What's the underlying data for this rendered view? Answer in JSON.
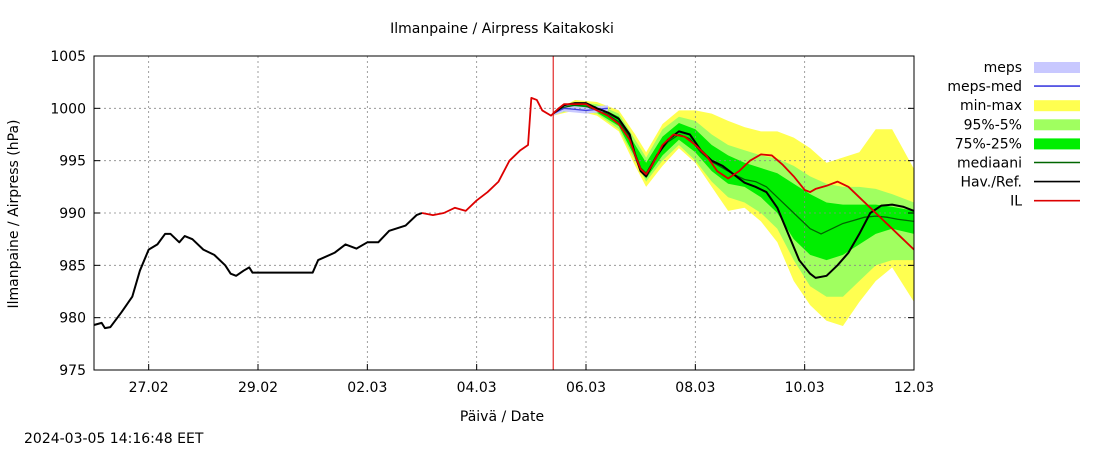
{
  "chart_data": {
    "type": "area",
    "title": "Ilmanpaine / Airpress Kaitakoski",
    "xlabel": "Päivä / Date",
    "ylabel": "Ilmanpaine / Airpress (hPa)",
    "ylim": [
      975,
      1005
    ],
    "yticks": [
      975,
      980,
      985,
      990,
      995,
      1000,
      1005
    ],
    "x_unit": "days",
    "xlim": [
      0,
      7.5
    ],
    "xticks": [
      {
        "label": "27.02",
        "x": 0.5
      },
      {
        "label": "29.02",
        "x": 1.5
      },
      {
        "label": "02.03",
        "x": 2.5
      },
      {
        "label": "04.03",
        "x": 3.5
      },
      {
        "label": "06.03",
        "x": 4.5
      },
      {
        "label": "08.03",
        "x": 5.5
      },
      {
        "label": "10.03",
        "x": 6.5
      },
      {
        "label": "12.03",
        "x": 7.5
      }
    ],
    "grid": true,
    "legend_position": "right",
    "now_marker_x": 4.2,
    "timestamp": "2024-03-05 14:16:48 EET",
    "legend": [
      {
        "name": "meps",
        "color": "#c8c8ff",
        "kind": "box"
      },
      {
        "name": "meps-med",
        "color": "#4040e0",
        "kind": "line"
      },
      {
        "name": "min-max",
        "color": "#ffff50",
        "kind": "box"
      },
      {
        "name": "95%-5%",
        "color": "#a0ff60",
        "kind": "box"
      },
      {
        "name": "75%-25%",
        "color": "#00ee00",
        "kind": "box"
      },
      {
        "name": "mediaani",
        "color": "#006600",
        "kind": "line"
      },
      {
        "name": "Hav./Ref.",
        "color": "#000000",
        "kind": "line"
      },
      {
        "name": "IL",
        "color": "#dd0000",
        "kind": "line"
      }
    ],
    "series": {
      "observed_black": [
        [
          0.0,
          979.3
        ],
        [
          0.07,
          979.5
        ],
        [
          0.1,
          979.0
        ],
        [
          0.15,
          979.1
        ],
        [
          0.25,
          980.5
        ],
        [
          0.35,
          982.0
        ],
        [
          0.42,
          984.5
        ],
        [
          0.5,
          986.5
        ],
        [
          0.58,
          987.0
        ],
        [
          0.65,
          988.0
        ],
        [
          0.7,
          988.0
        ],
        [
          0.78,
          987.2
        ],
        [
          0.83,
          987.8
        ],
        [
          0.9,
          987.5
        ],
        [
          1.0,
          986.5
        ],
        [
          1.1,
          986.0
        ],
        [
          1.2,
          985.0
        ],
        [
          1.25,
          984.2
        ],
        [
          1.3,
          984.0
        ],
        [
          1.37,
          984.5
        ],
        [
          1.42,
          984.8
        ],
        [
          1.45,
          984.3
        ],
        [
          2.0,
          984.3
        ],
        [
          2.05,
          985.5
        ],
        [
          2.2,
          986.2
        ],
        [
          2.3,
          987.0
        ],
        [
          2.4,
          986.6
        ],
        [
          2.5,
          987.2
        ],
        [
          2.6,
          987.2
        ],
        [
          2.7,
          988.3
        ],
        [
          2.85,
          988.8
        ],
        [
          2.95,
          989.8
        ],
        [
          3.0,
          990.0
        ]
      ],
      "il": [
        [
          3.0,
          990.0
        ],
        [
          3.1,
          989.8
        ],
        [
          3.2,
          990.0
        ],
        [
          3.3,
          990.5
        ],
        [
          3.4,
          990.2
        ],
        [
          3.5,
          991.2
        ],
        [
          3.6,
          992.0
        ],
        [
          3.7,
          993.0
        ],
        [
          3.8,
          995.0
        ],
        [
          3.9,
          996.0
        ],
        [
          3.97,
          996.5
        ],
        [
          4.0,
          1001.0
        ],
        [
          4.05,
          1000.8
        ],
        [
          4.1,
          999.8
        ],
        [
          4.18,
          999.3
        ],
        [
          4.25,
          1000.0
        ],
        [
          4.3,
          1000.4
        ],
        [
          4.4,
          1000.4
        ],
        [
          4.5,
          1000.4
        ],
        [
          4.6,
          999.8
        ],
        [
          4.7,
          999.3
        ],
        [
          4.8,
          998.5
        ],
        [
          4.9,
          997.0
        ],
        [
          4.95,
          995.5
        ],
        [
          5.0,
          994.2
        ],
        [
          5.05,
          993.7
        ],
        [
          5.1,
          994.5
        ],
        [
          5.2,
          996.5
        ],
        [
          5.3,
          997.5
        ],
        [
          5.4,
          997.3
        ],
        [
          5.5,
          996.5
        ],
        [
          5.6,
          995.5
        ],
        [
          5.7,
          994.0
        ],
        [
          5.8,
          993.3
        ],
        [
          5.9,
          994.0
        ],
        [
          6.0,
          995.0
        ],
        [
          6.1,
          995.6
        ],
        [
          6.2,
          995.5
        ],
        [
          6.3,
          994.6
        ],
        [
          6.4,
          993.5
        ],
        [
          6.5,
          992.2
        ],
        [
          6.55,
          992.0
        ],
        [
          6.6,
          992.3
        ],
        [
          6.7,
          992.6
        ],
        [
          6.8,
          993.0
        ],
        [
          6.9,
          992.5
        ],
        [
          7.0,
          991.5
        ],
        [
          7.1,
          990.5
        ],
        [
          7.2,
          989.5
        ],
        [
          7.3,
          988.5
        ],
        [
          7.4,
          987.5
        ],
        [
          7.5,
          986.5
        ]
      ],
      "forecast_ref_black": [
        [
          4.2,
          999.5
        ],
        [
          4.3,
          1000.3
        ],
        [
          4.4,
          1000.5
        ],
        [
          4.5,
          1000.5
        ],
        [
          4.6,
          1000.0
        ],
        [
          4.7,
          999.6
        ],
        [
          4.8,
          999.0
        ],
        [
          4.9,
          997.5
        ],
        [
          4.95,
          995.5
        ],
        [
          5.0,
          994.0
        ],
        [
          5.05,
          993.5
        ],
        [
          5.15,
          995.5
        ],
        [
          5.25,
          997.0
        ],
        [
          5.35,
          997.8
        ],
        [
          5.45,
          997.5
        ],
        [
          5.55,
          996.0
        ],
        [
          5.65,
          995.0
        ],
        [
          5.75,
          994.5
        ],
        [
          5.85,
          993.7
        ],
        [
          5.95,
          992.9
        ],
        [
          6.05,
          992.5
        ],
        [
          6.15,
          992.0
        ],
        [
          6.25,
          990.5
        ],
        [
          6.35,
          988.0
        ],
        [
          6.45,
          985.5
        ],
        [
          6.55,
          984.2
        ],
        [
          6.6,
          983.8
        ],
        [
          6.7,
          984.0
        ],
        [
          6.8,
          985.0
        ],
        [
          6.9,
          986.2
        ],
        [
          7.0,
          988.0
        ],
        [
          7.1,
          990.0
        ],
        [
          7.2,
          990.7
        ],
        [
          7.3,
          990.8
        ],
        [
          7.4,
          990.6
        ],
        [
          7.5,
          990.2
        ]
      ],
      "mediaani": [
        [
          4.2,
          999.5
        ],
        [
          4.3,
          1000.1
        ],
        [
          4.4,
          1000.3
        ],
        [
          4.5,
          1000.2
        ],
        [
          4.6,
          999.8
        ],
        [
          4.7,
          999.4
        ],
        [
          4.8,
          998.7
        ],
        [
          4.9,
          997.3
        ],
        [
          4.95,
          995.7
        ],
        [
          5.0,
          994.3
        ],
        [
          5.05,
          993.8
        ],
        [
          5.15,
          995.6
        ],
        [
          5.25,
          996.8
        ],
        [
          5.35,
          997.5
        ],
        [
          5.45,
          997.1
        ],
        [
          5.55,
          995.8
        ],
        [
          5.65,
          994.9
        ],
        [
          5.75,
          994.3
        ],
        [
          5.85,
          993.7
        ],
        [
          5.95,
          993.2
        ],
        [
          6.05,
          993.0
        ],
        [
          6.15,
          992.5
        ],
        [
          6.25,
          991.5
        ],
        [
          6.35,
          990.5
        ],
        [
          6.45,
          989.5
        ],
        [
          6.55,
          988.5
        ],
        [
          6.65,
          988.0
        ],
        [
          6.75,
          988.5
        ],
        [
          6.85,
          989.0
        ],
        [
          6.95,
          989.3
        ],
        [
          7.05,
          989.6
        ],
        [
          7.15,
          989.7
        ],
        [
          7.25,
          989.6
        ],
        [
          7.35,
          989.4
        ],
        [
          7.5,
          989.2
        ]
      ],
      "meps_med": [
        [
          4.2,
          999.5
        ],
        [
          4.3,
          1000.0
        ],
        [
          4.4,
          999.9
        ],
        [
          4.5,
          999.8
        ],
        [
          4.6,
          999.9
        ],
        [
          4.7,
          1000.0
        ]
      ],
      "meps_band": [
        [
          4.2,
          999.3,
          999.7
        ],
        [
          4.3,
          999.7,
          1000.3
        ],
        [
          4.4,
          999.6,
          1000.2
        ],
        [
          4.5,
          999.5,
          1000.1
        ],
        [
          4.6,
          999.6,
          1000.2
        ],
        [
          4.7,
          999.7,
          1000.3
        ]
      ],
      "minmax_band": [
        [
          4.2,
          999.3,
          999.7
        ],
        [
          4.4,
          999.8,
          1000.8
        ],
        [
          4.6,
          999.3,
          1000.6
        ],
        [
          4.8,
          997.8,
          999.8
        ],
        [
          4.95,
          994.5,
          997.5
        ],
        [
          5.05,
          992.5,
          995.8
        ],
        [
          5.2,
          994.5,
          998.5
        ],
        [
          5.35,
          996.2,
          999.8
        ],
        [
          5.5,
          994.8,
          999.8
        ],
        [
          5.65,
          992.5,
          999.5
        ],
        [
          5.8,
          990.2,
          998.8
        ],
        [
          5.95,
          990.5,
          998.2
        ],
        [
          6.1,
          989.2,
          997.8
        ],
        [
          6.25,
          987.2,
          997.8
        ],
        [
          6.4,
          983.5,
          997.2
        ],
        [
          6.55,
          981.2,
          996.2
        ],
        [
          6.7,
          979.7,
          994.8
        ],
        [
          6.85,
          979.2,
          995.3
        ],
        [
          7.0,
          981.5,
          995.8
        ],
        [
          7.15,
          983.5,
          998.0
        ],
        [
          7.3,
          984.8,
          998.0
        ],
        [
          7.5,
          981.5,
          994.2
        ]
      ],
      "p95_band": [
        [
          4.2,
          999.4,
          999.6
        ],
        [
          4.4,
          999.9,
          1000.6
        ],
        [
          4.6,
          999.5,
          1000.4
        ],
        [
          4.8,
          998.0,
          999.5
        ],
        [
          4.95,
          995.0,
          997.0
        ],
        [
          5.05,
          993.0,
          995.3
        ],
        [
          5.2,
          995.0,
          998.0
        ],
        [
          5.35,
          996.5,
          999.2
        ],
        [
          5.5,
          995.0,
          998.8
        ],
        [
          5.65,
          993.0,
          997.5
        ],
        [
          5.8,
          991.5,
          996.5
        ],
        [
          5.95,
          991.0,
          996.0
        ],
        [
          6.1,
          990.0,
          995.5
        ],
        [
          6.25,
          988.5,
          995.2
        ],
        [
          6.4,
          985.5,
          994.5
        ],
        [
          6.55,
          983.0,
          993.5
        ],
        [
          6.7,
          982.0,
          992.8
        ],
        [
          6.85,
          982.0,
          992.5
        ],
        [
          7.0,
          983.5,
          992.5
        ],
        [
          7.15,
          985.0,
          992.3
        ],
        [
          7.3,
          985.5,
          991.8
        ],
        [
          7.5,
          985.5,
          991.0
        ]
      ],
      "p75_band": [
        [
          4.2,
          999.4,
          999.6
        ],
        [
          4.4,
          1000.0,
          1000.5
        ],
        [
          4.6,
          999.6,
          1000.2
        ],
        [
          4.8,
          998.3,
          999.2
        ],
        [
          4.95,
          995.3,
          996.5
        ],
        [
          5.05,
          993.3,
          994.8
        ],
        [
          5.2,
          995.5,
          997.3
        ],
        [
          5.35,
          997.0,
          998.6
        ],
        [
          5.5,
          995.8,
          998.0
        ],
        [
          5.65,
          994.0,
          996.5
        ],
        [
          5.8,
          992.8,
          995.5
        ],
        [
          5.95,
          992.5,
          994.8
        ],
        [
          6.1,
          991.5,
          994.3
        ],
        [
          6.25,
          990.0,
          993.8
        ],
        [
          6.4,
          987.5,
          992.8
        ],
        [
          6.55,
          986.0,
          991.8
        ],
        [
          6.7,
          985.5,
          991.0
        ],
        [
          6.85,
          986.0,
          990.8
        ],
        [
          7.0,
          987.0,
          990.8
        ],
        [
          7.15,
          988.0,
          990.8
        ],
        [
          7.3,
          988.5,
          990.6
        ],
        [
          7.5,
          988.0,
          990.2
        ]
      ]
    }
  }
}
